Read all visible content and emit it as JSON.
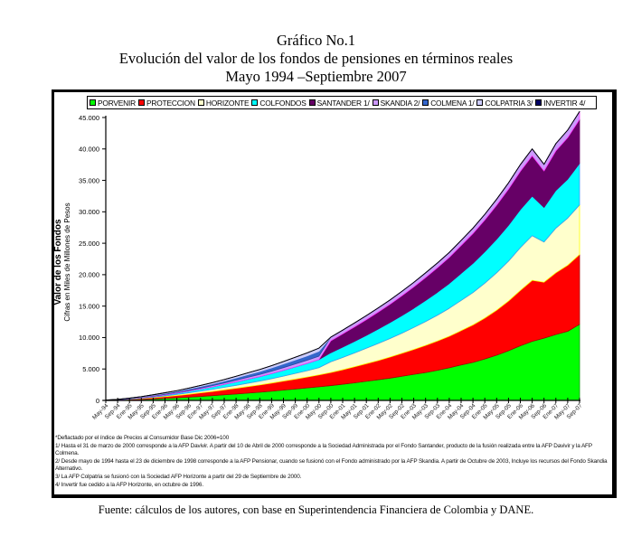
{
  "titles": {
    "line1": "Gráfico No.1",
    "line2": "Evolución del valor de los fondos de pensiones en términos reales",
    "line3": "Mayo 1994 –Septiembre 2007"
  },
  "colors": {
    "PORVENIR": "#00ff00",
    "PROTECCION": "#ff0000",
    "HORIZONTE": "#ffffcc",
    "COLFONDOS": "#00ffff",
    "SANTANDER 1/": "#660066",
    "SKANDIA 2/": "#cc99ff",
    "COLMENA 1/": "#3366cc",
    "COLPATRIA 3/": "#ccccff",
    "INVERTIR 4/": "#000066"
  },
  "legend_edge_colors": {
    "PORVENIR": "#009900",
    "PROTECCION": "#aa0000",
    "HORIZONTE": "#ffff00",
    "COLFONDOS": "#3399ff",
    "SANTANDER 1/": "#660066",
    "SKANDIA 2/": "#ff33ff",
    "COLMENA 1/": "#1f4f9f",
    "COLPATRIA 3/": "#ccccff",
    "INVERTIR 4/": "#000033"
  },
  "chart_data": {
    "type": "area",
    "stacked": true,
    "title": "Evolución del valor de los fondos de pensiones en términos reales",
    "ylabel": "Valor de los Fondos",
    "ylabel_sub": "Cifras en Miles de Millones de Pesos",
    "xlabel": "",
    "ylim": [
      0,
      45000
    ],
    "yticks": [
      0,
      5000,
      10000,
      15000,
      20000,
      25000,
      30000,
      35000,
      40000,
      45000
    ],
    "ytick_labels": [
      "0",
      "5.000",
      "10.000",
      "15.000",
      "20.000",
      "25.000",
      "30.000",
      "35.000",
      "40.000",
      "45.000"
    ],
    "grid": false,
    "legend_position": "top",
    "categories": [
      "May-94",
      "Sep-94",
      "Ene-95",
      "May-95",
      "Sep-95",
      "Ene-96",
      "May-96",
      "Sep-96",
      "Ene-97",
      "May-97",
      "Sep-97",
      "Ene-98",
      "May-98",
      "Sep-98",
      "Ene-99",
      "May-99",
      "Sep-99",
      "Ene-00",
      "May-00",
      "Sep-00",
      "Ene-01",
      "May-01",
      "Sep-01",
      "Ene-02",
      "May-02",
      "Sep-02",
      "Ene-03",
      "May-03",
      "Sep-03",
      "Ene-04",
      "May-04",
      "Sep-04",
      "Ene-05",
      "May-05",
      "Sep-05",
      "Ene-06",
      "May-06",
      "Sep-06",
      "Ene-07",
      "May-07",
      "Sep-07"
    ],
    "series": [
      {
        "name": "PORVENIR",
        "values": [
          10,
          40,
          90,
          150,
          230,
          320,
          420,
          520,
          640,
          760,
          900,
          1030,
          1180,
          1320,
          1480,
          1650,
          1820,
          2000,
          2180,
          2360,
          2580,
          2800,
          3050,
          3300,
          3550,
          3850,
          4150,
          4450,
          4800,
          5200,
          5650,
          6050,
          6600,
          7200,
          7900,
          8700,
          9400,
          9900,
          10500,
          11000,
          12100
        ]
      },
      {
        "name": "PROTECCION",
        "values": [
          10,
          30,
          80,
          130,
          200,
          280,
          360,
          460,
          560,
          660,
          780,
          900,
          1020,
          1140,
          1280,
          1420,
          1570,
          1720,
          1880,
          2080,
          2300,
          2550,
          2800,
          3050,
          3350,
          3650,
          3950,
          4300,
          4650,
          5000,
          5450,
          5950,
          6500,
          7150,
          7900,
          8800,
          9700,
          8900,
          9800,
          10500,
          11100
        ]
      },
      {
        "name": "HORIZONTE",
        "values": [
          0,
          10,
          30,
          60,
          90,
          130,
          180,
          230,
          280,
          340,
          400,
          470,
          540,
          610,
          700,
          800,
          900,
          1000,
          1150,
          1700,
          1950,
          2200,
          2450,
          2700,
          2950,
          3200,
          3500,
          3800,
          4100,
          4450,
          4800,
          5150,
          5550,
          5950,
          6350,
          6800,
          7100,
          6400,
          7100,
          7500,
          7900
        ]
      },
      {
        "name": "COLFONDOS",
        "values": [
          10,
          20,
          50,
          80,
          120,
          160,
          210,
          270,
          330,
          400,
          470,
          550,
          640,
          720,
          820,
          930,
          1050,
          1170,
          1300,
          1450,
          1650,
          1850,
          2050,
          2300,
          2550,
          2800,
          3050,
          3350,
          3650,
          3950,
          4300,
          4650,
          5000,
          5350,
          5700,
          6050,
          6300,
          5500,
          6000,
          6200,
          6600
        ]
      },
      {
        "name": "SANTANDER 1/",
        "values": [
          0,
          0,
          0,
          0,
          0,
          0,
          0,
          0,
          0,
          0,
          0,
          0,
          0,
          0,
          0,
          0,
          0,
          0,
          0,
          1900,
          2100,
          2300,
          2500,
          2700,
          2900,
          3150,
          3400,
          3650,
          3900,
          4150,
          4450,
          4750,
          5050,
          5400,
          5750,
          6100,
          6400,
          5800,
          6300,
          6600,
          7000
        ]
      },
      {
        "name": "SKANDIA 2/",
        "values": [
          10,
          20,
          30,
          50,
          70,
          90,
          110,
          130,
          160,
          190,
          220,
          260,
          300,
          340,
          380,
          420,
          460,
          500,
          540,
          580,
          600,
          620,
          640,
          660,
          680,
          700,
          720,
          740,
          760,
          780,
          800,
          850,
          900,
          950,
          1000,
          1050,
          1100,
          1050,
          1150,
          1200,
          1250
        ]
      },
      {
        "name": "COLMENA 1/",
        "values": [
          10,
          20,
          40,
          60,
          90,
          120,
          160,
          200,
          240,
          280,
          320,
          370,
          420,
          470,
          520,
          580,
          640,
          700,
          760,
          0,
          0,
          0,
          0,
          0,
          0,
          0,
          0,
          0,
          0,
          0,
          0,
          0,
          0,
          0,
          0,
          0,
          0,
          0,
          0,
          0,
          0
        ]
      },
      {
        "name": "COLPATRIA 3/",
        "values": [
          0,
          10,
          20,
          40,
          60,
          80,
          110,
          140,
          170,
          200,
          230,
          260,
          290,
          320,
          350,
          390,
          430,
          470,
          510,
          0,
          0,
          0,
          0,
          0,
          0,
          0,
          0,
          0,
          0,
          0,
          0,
          0,
          0,
          0,
          0,
          0,
          0,
          0,
          0,
          0,
          0
        ]
      },
      {
        "name": "INVERTIR 4/",
        "values": [
          10,
          20,
          30,
          40,
          50,
          50,
          0,
          0,
          0,
          0,
          0,
          0,
          0,
          0,
          0,
          0,
          0,
          0,
          0,
          0,
          0,
          0,
          0,
          0,
          0,
          0,
          0,
          0,
          0,
          0,
          0,
          0,
          0,
          0,
          0,
          0,
          0,
          0,
          0,
          0,
          0
        ]
      }
    ]
  },
  "notes": {
    "n0": "*Deflactado por el índice de Precios al Consumidor Base Dic 2006=100",
    "n1": "1/  Hasta el 31 de marzo de 2000 corresponde a la AFP Davivir. A partir del 10 de Abril de 2000 corresponde a la Sociedad Administrada por el Fondo Santander, producto de la fusión realizada entre la AFP Davivir y la AFP Colmena.",
    "n2": "2/ Desde mayo de 1994 hasta el 23 de diciembre de 1998 corresponde a la AFP Pensionar, cuando se fusionó con el Fondo administrado por la AFP Skandia. A partir de Octubre de 2003, Incluye los recursos del Fondo Skandia Alternativo.",
    "n3": "3/ La AFP Colpatria se fusionó con la Sociedad AFP Horizonte a partir del 29 de Septiembre de 2000.",
    "n4": "4/ Invertir fue cedido a la AFP Horizonte, en octubre de 1996."
  },
  "source": "Fuente: cálculos de los autores, con base en Superintendencia Financiera de Colombia y DANE."
}
